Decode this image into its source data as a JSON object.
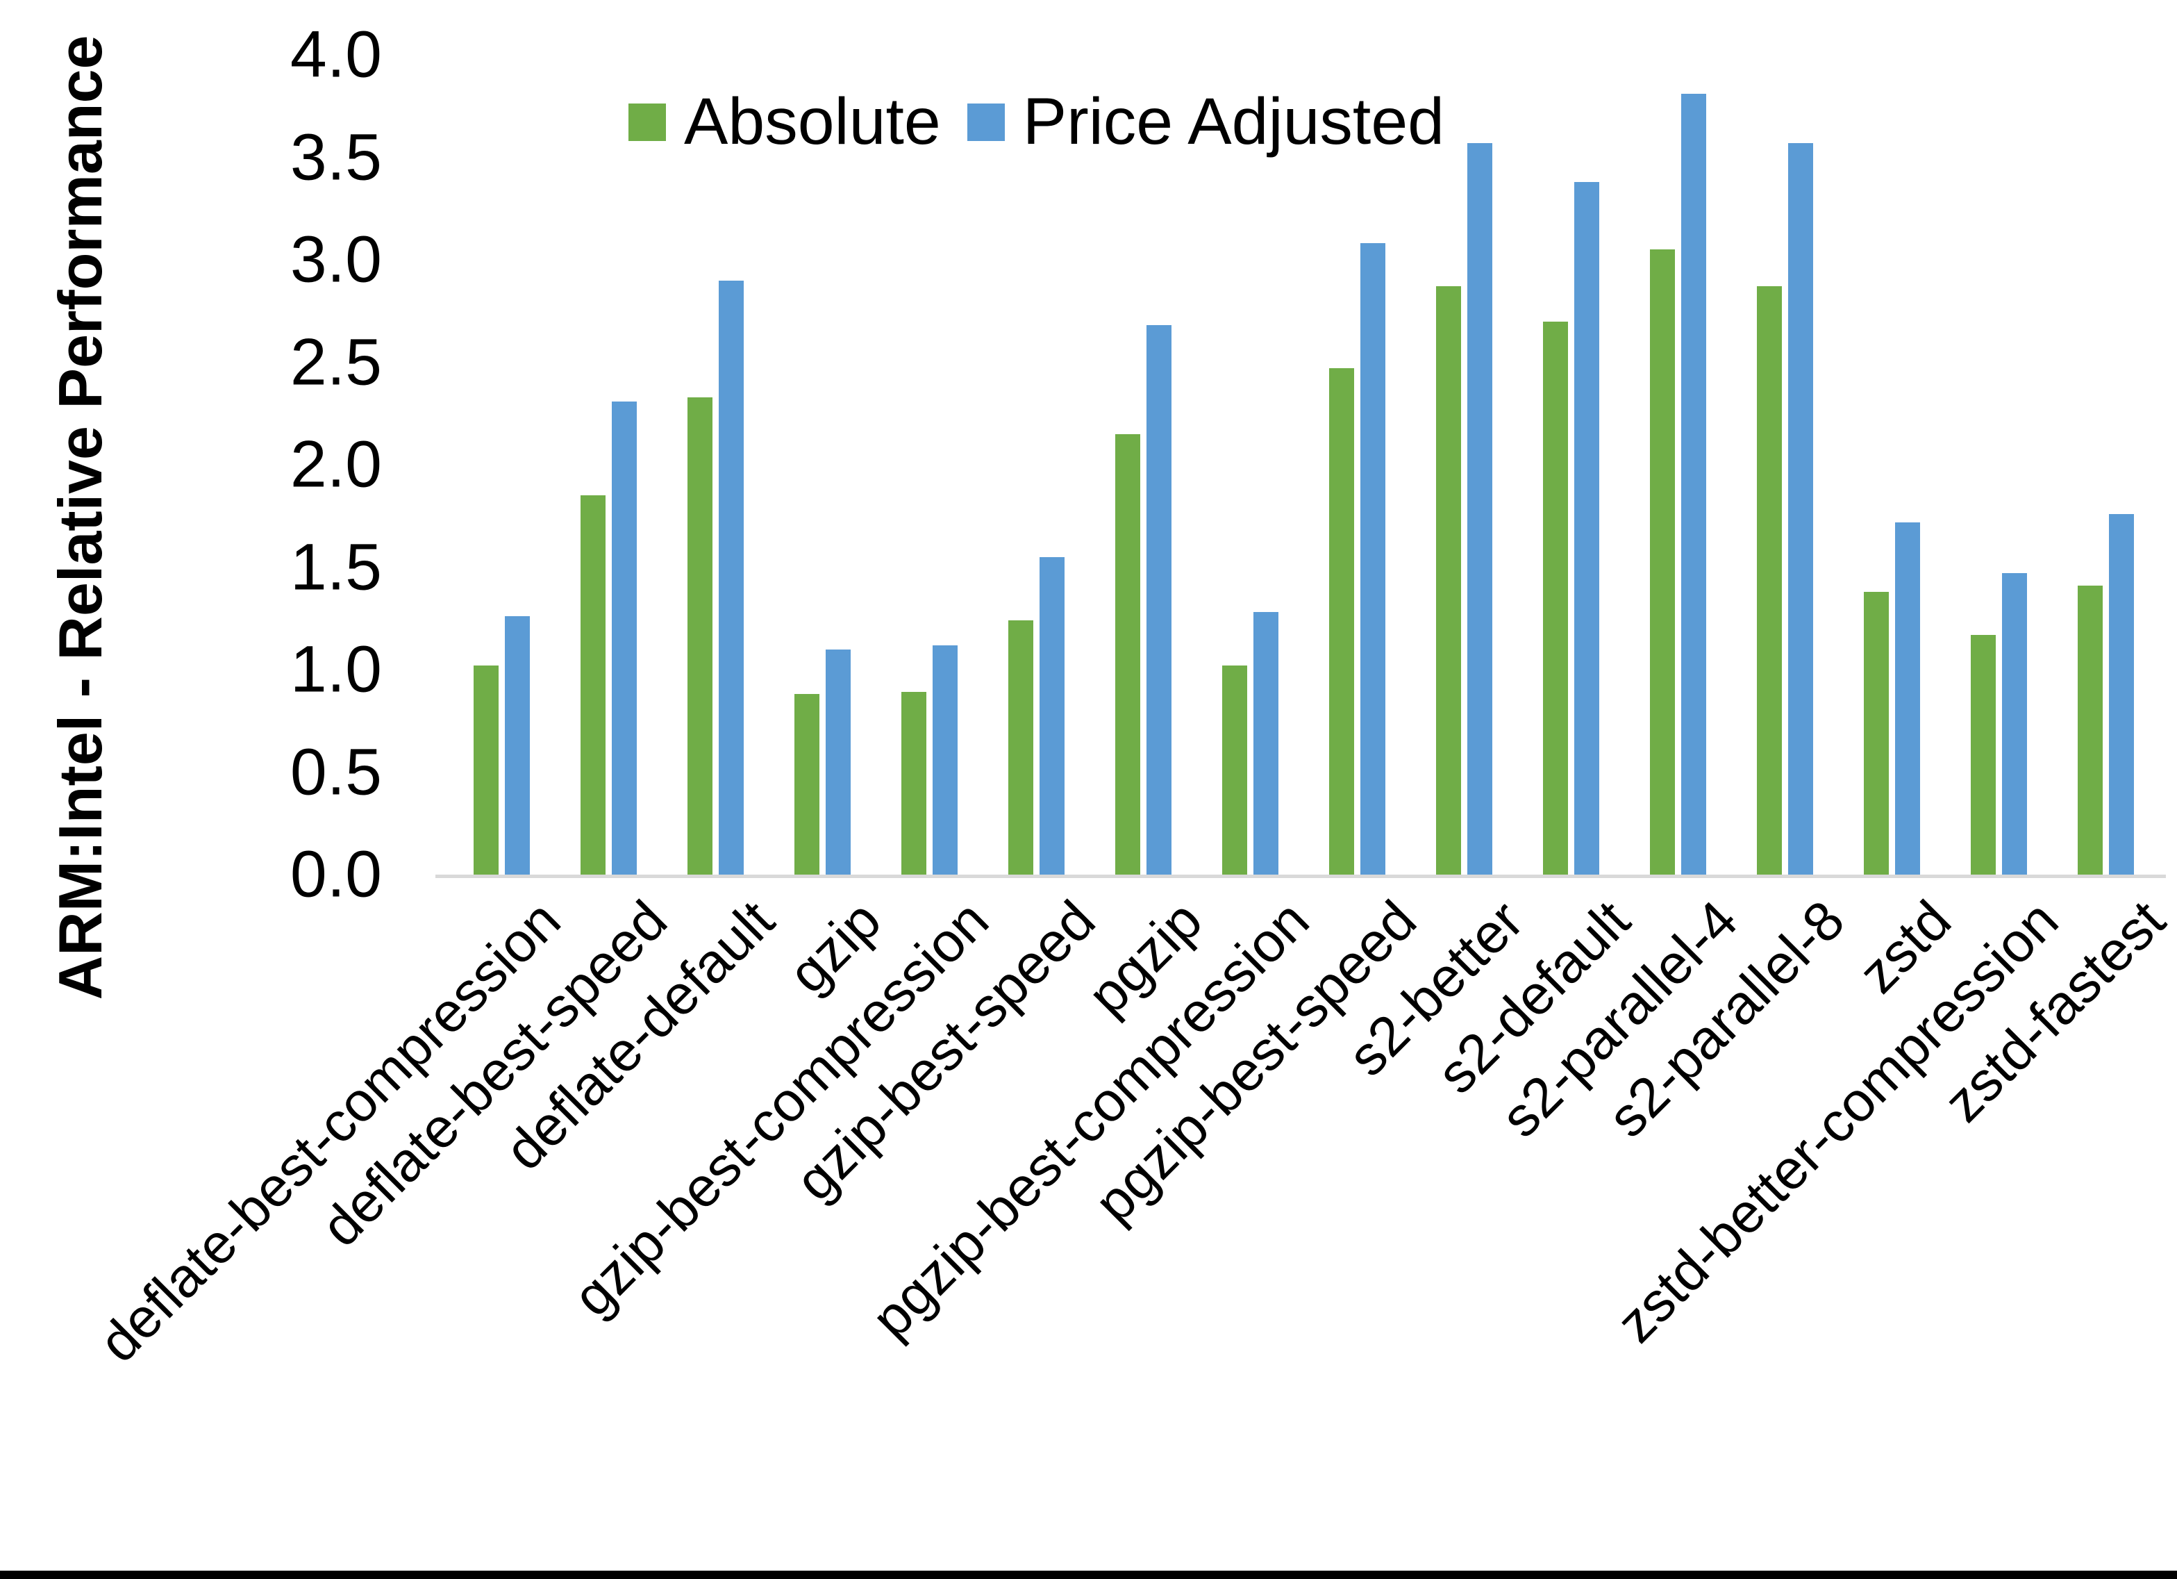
{
  "chart_data": {
    "type": "bar",
    "title": "",
    "xlabel": "",
    "ylabel": "ARM:Intel - Relative Performance",
    "ylim": [
      0,
      4
    ],
    "ytick_labels": [
      "0.0",
      "0.5",
      "1.0",
      "1.5",
      "2.0",
      "2.5",
      "3.0",
      "3.5",
      "4.0"
    ],
    "grid": false,
    "legend_position": "top-center",
    "categories": [
      "deflate-best-compression",
      "deflate-best-speed",
      "deflate-default",
      "gzip",
      "gzip-best-compression",
      "gzip-best-speed",
      "pgzip",
      "pgzip-best-compression",
      "pgzip-best-speed",
      "s2-better",
      "s2-default",
      "s2-parallel-4",
      "s2-parallel-8",
      "zstd",
      "zstd-better-compression",
      "zstd-fastest"
    ],
    "series": [
      {
        "name": "Absolute",
        "color": "#70AD47",
        "values": [
          1.02,
          1.85,
          2.33,
          0.88,
          0.89,
          1.24,
          2.15,
          1.02,
          2.47,
          2.87,
          2.7,
          3.05,
          2.87,
          1.38,
          1.17,
          1.41
        ]
      },
      {
        "name": "Price Adjusted",
        "color": "#5B9BD5",
        "values": [
          1.26,
          2.31,
          2.9,
          1.1,
          1.12,
          1.55,
          2.68,
          1.28,
          3.08,
          3.57,
          3.38,
          3.81,
          3.57,
          1.72,
          1.47,
          1.76
        ]
      }
    ]
  },
  "colors": {
    "axis_line": "#D9D9D9",
    "text": "#000000",
    "background": "#FFFFFF",
    "bottom_bar": "#000000"
  }
}
